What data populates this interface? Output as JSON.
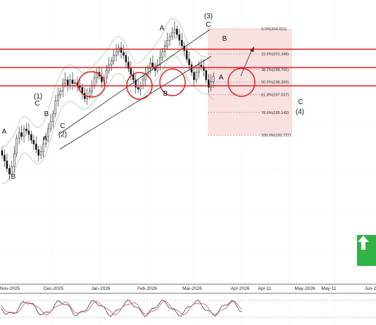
{
  "chart_data": {
    "type": "candlestick",
    "x_axis": {
      "ticks": [
        "Nov-2025",
        "Dec-2025",
        "Jan-2026",
        "Feb-2026",
        "Mar-2026",
        "Apr-2026",
        "Apr-11",
        "May-2026",
        "May-11",
        "Jun-2"
      ]
    },
    "fibonacci_levels": [
      {
        "label": "0.0%(204.011)",
        "ratio": 0.0,
        "price": 204.011
      },
      {
        "label": "23.6%(201.348)",
        "ratio": 0.236,
        "price": 201.348
      },
      {
        "label": "38.2%(199.701)",
        "ratio": 0.382,
        "price": 199.701
      },
      {
        "label": "50.0%(198.369)",
        "ratio": 0.5,
        "price": 198.369
      },
      {
        "label": "61.8%(197.037)",
        "ratio": 0.618,
        "price": 197.037
      },
      {
        "label": "78.6%(195.142)",
        "ratio": 0.786,
        "price": 195.142
      },
      {
        "label": "100.0%(192.727)",
        "ratio": 1.0,
        "price": 192.727
      }
    ],
    "wave_labels": [
      "A",
      "B",
      "(1)",
      "C",
      "B",
      "A",
      "C",
      "(2)",
      "A",
      "B",
      "(3)",
      "C",
      "B",
      "A",
      "C",
      "(4)"
    ],
    "red_horizontal_lines": 3,
    "highlight_circles": 4,
    "series": [
      {
        "type": "candlestick",
        "values": [
          190.6,
          190.0,
          189.2,
          188.6,
          189.4,
          190.8,
          192.4,
          193.0,
          192.6,
          193.4,
          193.2,
          192.8,
          192.2,
          191.8,
          191.2,
          190.6,
          191.0,
          191.8,
          192.6,
          193.4,
          194.2,
          195.0,
          196.4,
          197.0,
          197.4,
          198.2,
          198.6,
          198.0,
          198.6,
          198.2,
          198.3,
          198.0,
          197.8,
          197.2,
          196.6,
          196.9,
          197.4,
          198.0,
          198.8,
          199.4,
          199.0,
          198.4,
          198.8,
          199.6,
          200.2,
          200.6,
          201.2,
          201.6,
          202.0,
          201.5,
          201.2,
          200.5,
          199.8,
          199.2,
          198.6,
          197.8,
          197.6,
          198.0,
          198.6,
          199.2,
          199.8,
          200.4,
          200.0,
          199.6,
          200.2,
          201.0,
          201.6,
          202.2,
          202.8,
          203.2,
          203.6,
          204.0,
          203.4,
          202.8,
          202.2,
          201.7,
          200.8,
          200.2,
          199.4,
          198.6,
          199.4,
          200.2,
          200.0,
          199.6,
          198.6,
          197.8,
          198.4,
          199.0
        ]
      }
    ]
  },
  "ui": {
    "trend_icon": "up-arrow-icon",
    "trend_color": "#2fb344",
    "resistance_color": "#e02020"
  }
}
